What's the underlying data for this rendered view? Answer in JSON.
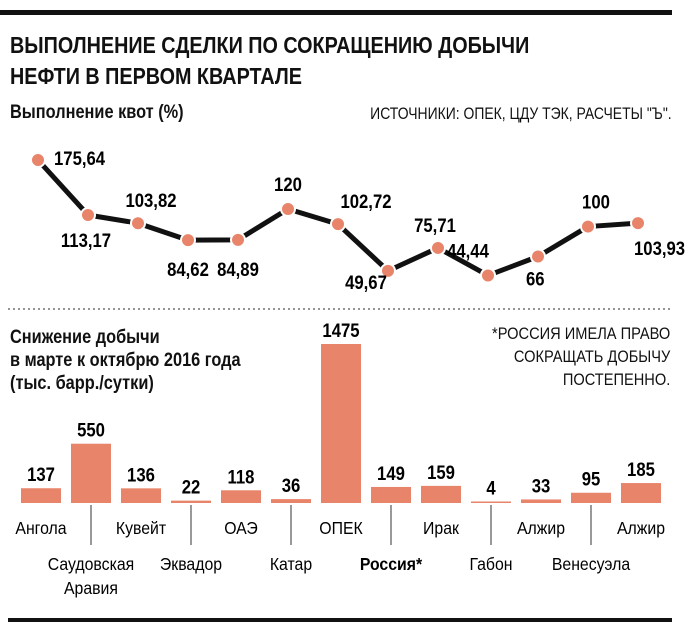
{
  "title_line1": "ВЫПОЛНЕНИЕ СДЕЛКИ ПО СОКРАЩЕНИЮ ДОБЫЧИ",
  "title_line2": "НЕФТИ В ПЕРВОМ КВАРТАЛЕ",
  "source": "ИСТОЧНИКИ: ОПЕК, ЦДУ ТЭК, РАСЧЕТЫ \"Ъ\".",
  "note": [
    "*РОССИЯ ИМЕЛА ПРАВО",
    "СОКРАЩАТЬ ДОБЫЧУ",
    "ПОСТЕПЕННО."
  ],
  "colors": {
    "accent": "#e8846a",
    "line": "#111111"
  },
  "chart_data": [
    {
      "type": "line",
      "title": "Выполнение квот (%)",
      "values": [
        175.64,
        113.17,
        103.82,
        84.62,
        84.89,
        120,
        102.72,
        49.67,
        75.71,
        44.44,
        66,
        100,
        103.93
      ],
      "labels": [
        "175,64",
        "113,17",
        "103,82",
        "84,62",
        "84,89",
        "120",
        "102,72",
        "49,67",
        "75,71",
        "44,44",
        "66",
        "100",
        "103,93"
      ]
    },
    {
      "type": "bar",
      "title": [
        "Снижение добычи",
        "в марте к октябрю 2016 года",
        "(тыс. барр./сутки)"
      ],
      "categories": [
        "Ангола",
        "Саудовская Аравия",
        "Кувейт",
        "Эквадор",
        "ОАЭ",
        "Катар",
        "ОПЕК",
        "Россия*",
        "Ирак",
        "Габон",
        "Алжир",
        "Венесуэла",
        "Алжир"
      ],
      "values": [
        137,
        550,
        136,
        22,
        118,
        36,
        1475,
        149,
        159,
        4,
        33,
        95,
        185
      ]
    }
  ]
}
